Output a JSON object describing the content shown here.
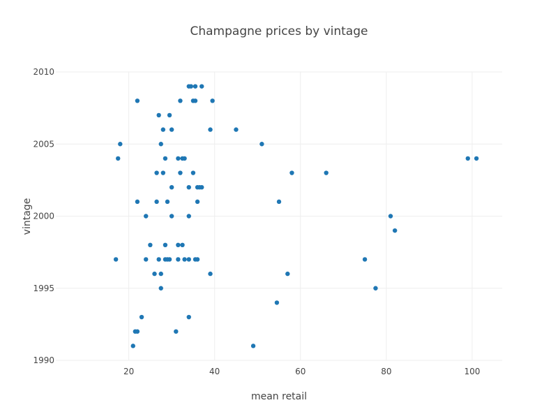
{
  "chart_data": {
    "type": "scatter",
    "title": "Champagne prices by vintage",
    "xlabel": "mean retail",
    "ylabel": "vintage",
    "xlim": [
      3,
      107
    ],
    "ylim": [
      1990,
      2010
    ],
    "x_ticks": [
      20,
      40,
      60,
      80,
      100
    ],
    "y_ticks": [
      1990,
      1995,
      2000,
      2005,
      2010
    ],
    "grid": true,
    "legend": "none",
    "marker_color": "#1f77b4",
    "points": [
      {
        "x": 22,
        "y": 2008
      },
      {
        "x": 32,
        "y": 2008
      },
      {
        "x": 35,
        "y": 2008
      },
      {
        "x": 35.5,
        "y": 2008
      },
      {
        "x": 39.5,
        "y": 2008
      },
      {
        "x": 34,
        "y": 2009
      },
      {
        "x": 34.5,
        "y": 2009
      },
      {
        "x": 35.5,
        "y": 2009
      },
      {
        "x": 37,
        "y": 2009
      },
      {
        "x": 27,
        "y": 2007
      },
      {
        "x": 29.5,
        "y": 2007
      },
      {
        "x": 28,
        "y": 2006
      },
      {
        "x": 30,
        "y": 2006
      },
      {
        "x": 39,
        "y": 2006
      },
      {
        "x": 45,
        "y": 2006
      },
      {
        "x": 18,
        "y": 2005
      },
      {
        "x": 27.5,
        "y": 2005
      },
      {
        "x": 51,
        "y": 2005
      },
      {
        "x": 17.5,
        "y": 2004
      },
      {
        "x": 28.5,
        "y": 2004
      },
      {
        "x": 31.5,
        "y": 2004
      },
      {
        "x": 32.5,
        "y": 2004
      },
      {
        "x": 33,
        "y": 2004
      },
      {
        "x": 99,
        "y": 2004
      },
      {
        "x": 101,
        "y": 2004
      },
      {
        "x": 26.5,
        "y": 2003
      },
      {
        "x": 28,
        "y": 2003
      },
      {
        "x": 32,
        "y": 2003
      },
      {
        "x": 35,
        "y": 2003
      },
      {
        "x": 58,
        "y": 2003
      },
      {
        "x": 66,
        "y": 2003
      },
      {
        "x": 30,
        "y": 2002
      },
      {
        "x": 34,
        "y": 2002
      },
      {
        "x": 36,
        "y": 2002
      },
      {
        "x": 36.5,
        "y": 2002
      },
      {
        "x": 37,
        "y": 2002
      },
      {
        "x": 22,
        "y": 2001
      },
      {
        "x": 26.5,
        "y": 2001
      },
      {
        "x": 29,
        "y": 2001
      },
      {
        "x": 36,
        "y": 2001
      },
      {
        "x": 55,
        "y": 2001
      },
      {
        "x": 24,
        "y": 2000
      },
      {
        "x": 30,
        "y": 2000
      },
      {
        "x": 34,
        "y": 2000
      },
      {
        "x": 81,
        "y": 2000
      },
      {
        "x": 82,
        "y": 1999
      },
      {
        "x": 25,
        "y": 1998
      },
      {
        "x": 28.5,
        "y": 1998
      },
      {
        "x": 31.5,
        "y": 1998
      },
      {
        "x": 32.5,
        "y": 1998
      },
      {
        "x": 17,
        "y": 1997
      },
      {
        "x": 24,
        "y": 1997
      },
      {
        "x": 27,
        "y": 1997
      },
      {
        "x": 28.5,
        "y": 1997
      },
      {
        "x": 29,
        "y": 1997
      },
      {
        "x": 29.5,
        "y": 1997
      },
      {
        "x": 31.5,
        "y": 1997
      },
      {
        "x": 33,
        "y": 1997
      },
      {
        "x": 34,
        "y": 1997
      },
      {
        "x": 35.5,
        "y": 1997
      },
      {
        "x": 36,
        "y": 1997
      },
      {
        "x": 75,
        "y": 1997
      },
      {
        "x": 26,
        "y": 1996
      },
      {
        "x": 27.5,
        "y": 1996
      },
      {
        "x": 39,
        "y": 1996
      },
      {
        "x": 57,
        "y": 1996
      },
      {
        "x": 27.5,
        "y": 1995
      },
      {
        "x": 77.5,
        "y": 1995
      },
      {
        "x": 54.5,
        "y": 1994
      },
      {
        "x": 23,
        "y": 1993
      },
      {
        "x": 34,
        "y": 1993
      },
      {
        "x": 21.5,
        "y": 1992
      },
      {
        "x": 22,
        "y": 1992
      },
      {
        "x": 31,
        "y": 1992
      },
      {
        "x": 21,
        "y": 1991
      },
      {
        "x": 49,
        "y": 1991
      }
    ]
  }
}
